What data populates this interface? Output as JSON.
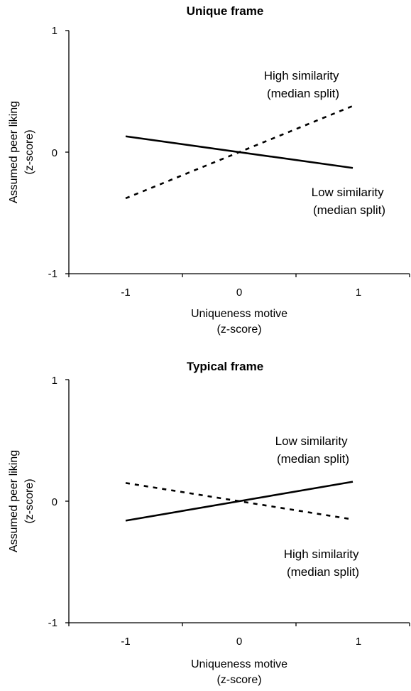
{
  "chart_data": [
    {
      "type": "line",
      "title": "Unique frame",
      "xlabel": [
        "Uniqueness motive",
        "(z-score)"
      ],
      "ylabel": [
        "Assumed peer liking",
        "(z-score)"
      ],
      "x": [
        -1,
        1
      ],
      "xticks": [
        "-1",
        "0",
        "1"
      ],
      "yticks": [
        "-1",
        "0",
        "1"
      ],
      "xlim": [
        -1.5,
        1.5
      ],
      "ylim": [
        -1,
        1
      ],
      "grid": false,
      "series": [
        {
          "name": "High similarity (median split)",
          "style": "dashed",
          "values": [
            -0.38,
            0.38
          ]
        },
        {
          "name": "Low similarity (median split)",
          "style": "solid",
          "values": [
            0.13,
            -0.13
          ]
        }
      ],
      "annotations": [
        {
          "lines": [
            "High similarity",
            "(median split)"
          ]
        },
        {
          "lines": [
            "Low similarity",
            "(median split)"
          ]
        }
      ]
    },
    {
      "type": "line",
      "title": "Typical frame",
      "xlabel": [
        "Uniqueness motive",
        "(z-score)"
      ],
      "ylabel": [
        "Assumed peer liking",
        "(z-score)"
      ],
      "x": [
        -1,
        1
      ],
      "xticks": [
        "-1",
        "0",
        "1"
      ],
      "yticks": [
        "-1",
        "0",
        "1"
      ],
      "xlim": [
        -1.5,
        1.5
      ],
      "ylim": [
        -1,
        1
      ],
      "grid": false,
      "series": [
        {
          "name": "High similarity (median split)",
          "style": "dashed",
          "values": [
            0.15,
            -0.15
          ]
        },
        {
          "name": "Low similarity (median split)",
          "style": "solid",
          "values": [
            -0.16,
            0.16
          ]
        }
      ],
      "annotations": [
        {
          "lines": [
            "Low similarity",
            "(median split)"
          ]
        },
        {
          "lines": [
            "High similarity",
            "(median split)"
          ]
        }
      ]
    }
  ]
}
